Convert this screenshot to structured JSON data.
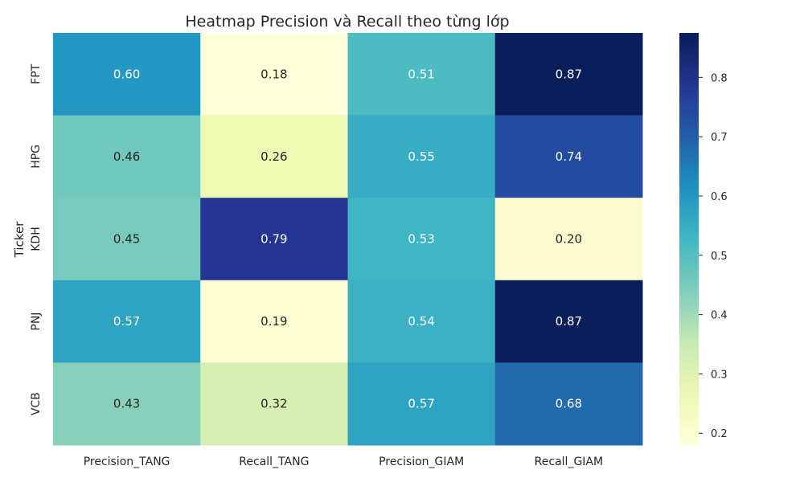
{
  "chart_data": {
    "type": "heatmap",
    "title": "Heatmap Precision và Recall theo từng lớp",
    "xlabel": "",
    "ylabel": "Ticker",
    "columns": [
      "Precision_TANG",
      "Recall_TANG",
      "Precision_GIAM",
      "Recall_GIAM"
    ],
    "rows": [
      "FPT",
      "HPG",
      "KDH",
      "PNJ",
      "VCB"
    ],
    "values": [
      [
        0.6,
        0.18,
        0.51,
        0.87
      ],
      [
        0.46,
        0.26,
        0.55,
        0.74
      ],
      [
        0.45,
        0.79,
        0.53,
        0.2
      ],
      [
        0.57,
        0.19,
        0.54,
        0.87
      ],
      [
        0.43,
        0.32,
        0.57,
        0.68
      ]
    ],
    "annotation_format": "0.00",
    "colormap": "YlGnBu",
    "colorbar": {
      "range": [
        0.18,
        0.875
      ],
      "ticks": [
        0.2,
        0.3,
        0.4,
        0.5,
        0.6,
        0.7,
        0.8
      ],
      "tick_labels": [
        "0.2",
        "0.3",
        "0.4",
        "0.5",
        "0.6",
        "0.7",
        "0.8"
      ]
    },
    "grid": false,
    "legend": "colorbar-right"
  }
}
